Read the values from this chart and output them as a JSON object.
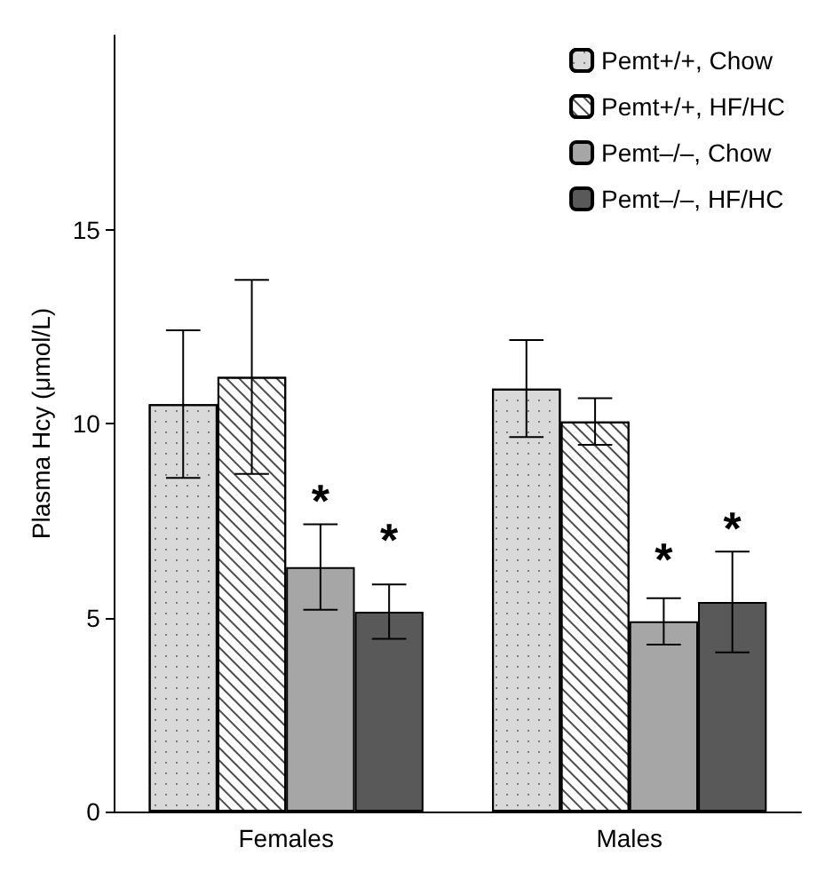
{
  "chart_data": {
    "type": "bar",
    "ylabel": "Plasma Hcy (μmol/L)",
    "categories": [
      "Females",
      "Males"
    ],
    "series": [
      {
        "name": "Pemt+/+, Chow",
        "color": "#d9d9d9",
        "values": [
          10.5,
          10.9
        ],
        "errors": [
          1.9,
          1.25
        ]
      },
      {
        "name": "Pemt+/+, HF/HC",
        "color": "#ffffff",
        "values": [
          11.2,
          10.05
        ],
        "errors": [
          2.5,
          0.6
        ]
      },
      {
        "name": "Pemt–/–, Chow",
        "color": "#a6a6a6",
        "values": [
          6.3,
          4.9
        ],
        "errors": [
          1.1,
          0.6
        ]
      },
      {
        "name": "Pemt–/–, HF/HC",
        "color": "#595959",
        "values": [
          5.15,
          5.4
        ],
        "errors": [
          0.7,
          1.3
        ]
      }
    ],
    "ylim": [
      0,
      20
    ],
    "yticks": [
      0,
      5,
      10,
      15
    ],
    "grid": false,
    "legend": "top right",
    "annotations": [
      {
        "text": "*",
        "x": "Females",
        "y": 8.0
      },
      {
        "text": "*",
        "x": "Females",
        "y": 7.0
      },
      {
        "text": "*",
        "x": "Males",
        "y": 6.5
      },
      {
        "text": "*",
        "x": "Males",
        "y": 7.3
      }
    ]
  }
}
